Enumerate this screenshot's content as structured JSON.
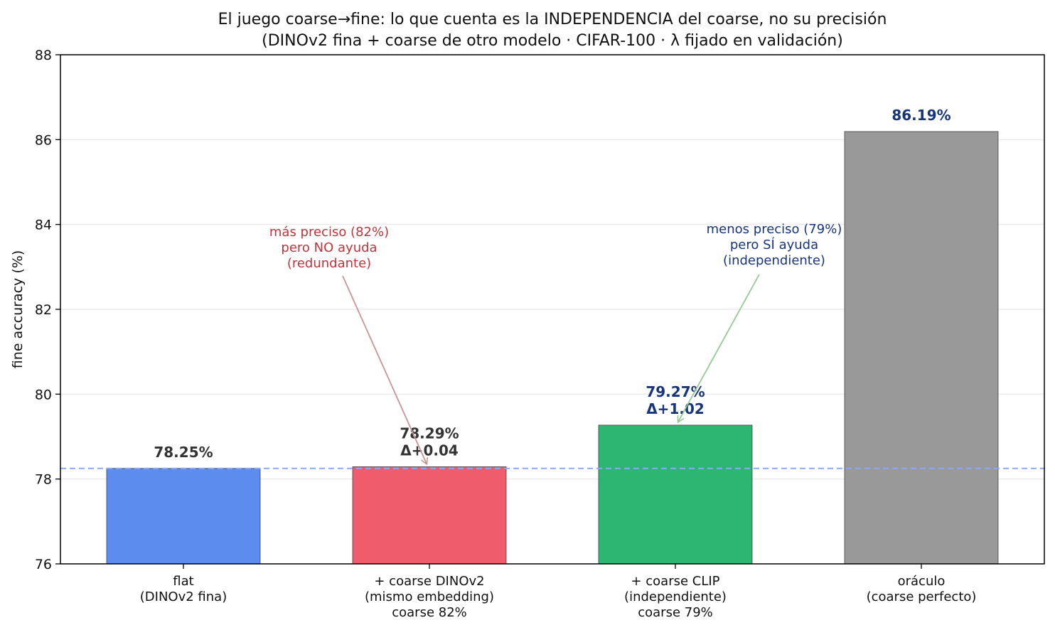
{
  "chart_data": {
    "type": "bar",
    "title": "El juego coarse→fine: lo que cuenta es la INDEPENDENCIA del coarse, no su precisión",
    "subtitle": "(DINOv2 fina + coarse de otro modelo · CIFAR-100 · λ fijado en validación)",
    "ylabel": "fine accuracy (%)",
    "ylim": [
      76,
      88
    ],
    "yticks": [
      "76",
      "78",
      "80",
      "82",
      "84",
      "86",
      "88"
    ],
    "grid": "horizontal",
    "baseline": 78.25,
    "categories": [
      [
        "flat",
        "(DINOv2 fina)"
      ],
      [
        "+ coarse DINOv2",
        "(mismo embedding)",
        "coarse 82%"
      ],
      [
        "+ coarse CLIP",
        "(independiente)",
        "coarse 79%"
      ],
      [
        "oráculo",
        "(coarse perfecto)"
      ]
    ],
    "values": [
      78.25,
      78.29,
      79.27,
      86.19
    ],
    "colors": [
      "#5b8cee",
      "#ef5d6c",
      "#2db672",
      "#999999"
    ],
    "value_labels": [
      [
        "78.25%"
      ],
      [
        "78.29%",
        "Δ+0.04"
      ],
      [
        "79.27%",
        "Δ+1.02"
      ],
      [
        "86.19%"
      ]
    ],
    "value_label_colors": [
      "#333333",
      "#333333",
      "#17357a",
      "#17357a"
    ],
    "annotations": [
      {
        "lines": [
          "más preciso (82%)",
          "pero NO ayuda",
          "(redundante)"
        ],
        "color": "#c0333a",
        "arrow_color": "#c99494",
        "target_bar": 1
      },
      {
        "lines": [
          "menos preciso (79%)",
          "pero SÍ ayuda",
          "(independiente)"
        ],
        "color": "#17357a",
        "arrow_color": "#94c994",
        "target_bar": 2
      }
    ]
  }
}
